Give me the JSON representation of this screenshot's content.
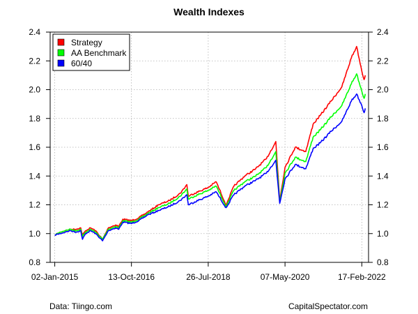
{
  "chart_data": {
    "type": "line",
    "title": "Wealth Indexes",
    "xlabel": "",
    "ylabel": "",
    "ylim": [
      0.8,
      2.4
    ],
    "xlim": [
      "2014-11-24",
      "2022-04-15"
    ],
    "y_ticks": [
      0.8,
      1.0,
      1.2,
      1.4,
      1.6,
      1.8,
      2.0,
      2.2,
      2.4
    ],
    "y_tick_labels": [
      "0.8",
      "1.0",
      "1.2",
      "1.4",
      "1.6",
      "1.8",
      "2.0",
      "2.2",
      "2.4"
    ],
    "x_ticks": [
      "2015-01-02",
      "2016-10-13",
      "2018-07-26",
      "2020-05-07",
      "2022-02-17"
    ],
    "x_tick_labels": [
      "02-Jan-2015",
      "13-Oct-2016",
      "26-Jul-2018",
      "07-May-2020",
      "17-Feb-2022"
    ],
    "y_axis_right": true,
    "grid": true,
    "legend_position": "top-left",
    "series": [
      {
        "name": "Strategy",
        "color": "#ff0000",
        "points": [
          [
            "2015-01-02",
            0.99
          ],
          [
            "2015-02-15",
            1.01
          ],
          [
            "2015-04-01",
            1.02
          ],
          [
            "2015-05-15",
            1.03
          ],
          [
            "2015-07-01",
            1.03
          ],
          [
            "2015-08-10",
            1.04
          ],
          [
            "2015-08-25",
            0.99
          ],
          [
            "2015-09-20",
            1.02
          ],
          [
            "2015-11-01",
            1.04
          ],
          [
            "2015-12-15",
            1.02
          ],
          [
            "2016-02-11",
            0.96
          ],
          [
            "2016-04-01",
            1.04
          ],
          [
            "2016-06-01",
            1.06
          ],
          [
            "2016-06-27",
            1.05
          ],
          [
            "2016-08-01",
            1.1
          ],
          [
            "2016-10-13",
            1.09
          ],
          [
            "2016-12-15",
            1.11
          ],
          [
            "2017-03-01",
            1.15
          ],
          [
            "2017-06-01",
            1.2
          ],
          [
            "2017-09-01",
            1.23
          ],
          [
            "2017-12-01",
            1.28
          ],
          [
            "2018-01-26",
            1.34
          ],
          [
            "2018-02-08",
            1.26
          ],
          [
            "2018-04-01",
            1.28
          ],
          [
            "2018-07-26",
            1.32
          ],
          [
            "2018-10-01",
            1.36
          ],
          [
            "2018-12-24",
            1.2
          ],
          [
            "2019-03-01",
            1.33
          ],
          [
            "2019-06-01",
            1.4
          ],
          [
            "2019-09-01",
            1.45
          ],
          [
            "2019-12-01",
            1.52
          ],
          [
            "2020-02-19",
            1.64
          ],
          [
            "2020-03-23",
            1.23
          ],
          [
            "2020-05-07",
            1.46
          ],
          [
            "2020-08-01",
            1.6
          ],
          [
            "2020-10-30",
            1.57
          ],
          [
            "2020-12-31",
            1.76
          ],
          [
            "2021-03-01",
            1.82
          ],
          [
            "2021-06-01",
            1.92
          ],
          [
            "2021-09-01",
            2.02
          ],
          [
            "2021-11-20",
            2.22
          ],
          [
            "2022-01-04",
            2.3
          ],
          [
            "2022-02-17",
            2.13
          ],
          [
            "2022-03-08",
            2.07
          ],
          [
            "2022-03-18",
            2.1
          ]
        ]
      },
      {
        "name": "AA Benchmark",
        "color": "#00ff00",
        "points": [
          [
            "2015-01-02",
            0.99
          ],
          [
            "2015-02-15",
            1.01
          ],
          [
            "2015-04-01",
            1.02
          ],
          [
            "2015-05-15",
            1.03
          ],
          [
            "2015-07-01",
            1.02
          ],
          [
            "2015-08-10",
            1.03
          ],
          [
            "2015-08-25",
            0.98
          ],
          [
            "2015-09-20",
            1.01
          ],
          [
            "2015-11-01",
            1.03
          ],
          [
            "2015-12-15",
            1.01
          ],
          [
            "2016-02-11",
            0.96
          ],
          [
            "2016-04-01",
            1.03
          ],
          [
            "2016-06-01",
            1.05
          ],
          [
            "2016-06-27",
            1.04
          ],
          [
            "2016-08-01",
            1.09
          ],
          [
            "2016-10-13",
            1.08
          ],
          [
            "2016-12-15",
            1.1
          ],
          [
            "2017-03-01",
            1.14
          ],
          [
            "2017-06-01",
            1.18
          ],
          [
            "2017-09-01",
            1.21
          ],
          [
            "2017-12-01",
            1.26
          ],
          [
            "2018-01-26",
            1.31
          ],
          [
            "2018-02-08",
            1.24
          ],
          [
            "2018-04-01",
            1.26
          ],
          [
            "2018-07-26",
            1.3
          ],
          [
            "2018-10-01",
            1.33
          ],
          [
            "2018-12-24",
            1.19
          ],
          [
            "2019-03-01",
            1.3
          ],
          [
            "2019-06-01",
            1.36
          ],
          [
            "2019-09-01",
            1.4
          ],
          [
            "2019-12-01",
            1.46
          ],
          [
            "2020-02-19",
            1.57
          ],
          [
            "2020-03-23",
            1.22
          ],
          [
            "2020-05-07",
            1.42
          ],
          [
            "2020-08-01",
            1.53
          ],
          [
            "2020-10-30",
            1.5
          ],
          [
            "2020-12-31",
            1.67
          ],
          [
            "2021-03-01",
            1.72
          ],
          [
            "2021-06-01",
            1.81
          ],
          [
            "2021-09-01",
            1.89
          ],
          [
            "2021-11-20",
            2.04
          ],
          [
            "2022-01-04",
            2.11
          ],
          [
            "2022-02-17",
            1.99
          ],
          [
            "2022-03-08",
            1.94
          ],
          [
            "2022-03-18",
            1.97
          ]
        ]
      },
      {
        "name": "60/40",
        "color": "#0000ff",
        "points": [
          [
            "2015-01-02",
            0.99
          ],
          [
            "2015-02-15",
            1.0
          ],
          [
            "2015-04-01",
            1.01
          ],
          [
            "2015-05-15",
            1.02
          ],
          [
            "2015-07-01",
            1.01
          ],
          [
            "2015-08-10",
            1.02
          ],
          [
            "2015-08-25",
            0.96
          ],
          [
            "2015-09-20",
            1.0
          ],
          [
            "2015-11-01",
            1.02
          ],
          [
            "2015-12-15",
            1.0
          ],
          [
            "2016-02-11",
            0.95
          ],
          [
            "2016-04-01",
            1.02
          ],
          [
            "2016-06-01",
            1.04
          ],
          [
            "2016-06-27",
            1.03
          ],
          [
            "2016-08-01",
            1.08
          ],
          [
            "2016-10-13",
            1.07
          ],
          [
            "2016-12-15",
            1.09
          ],
          [
            "2017-03-01",
            1.13
          ],
          [
            "2017-06-01",
            1.16
          ],
          [
            "2017-09-01",
            1.19
          ],
          [
            "2017-12-01",
            1.23
          ],
          [
            "2018-01-26",
            1.27
          ],
          [
            "2018-02-08",
            1.2
          ],
          [
            "2018-04-01",
            1.22
          ],
          [
            "2018-07-26",
            1.26
          ],
          [
            "2018-10-01",
            1.29
          ],
          [
            "2018-12-24",
            1.18
          ],
          [
            "2019-03-01",
            1.27
          ],
          [
            "2019-06-01",
            1.33
          ],
          [
            "2019-09-01",
            1.37
          ],
          [
            "2019-12-01",
            1.42
          ],
          [
            "2020-02-19",
            1.51
          ],
          [
            "2020-03-23",
            1.21
          ],
          [
            "2020-05-07",
            1.38
          ],
          [
            "2020-08-01",
            1.48
          ],
          [
            "2020-10-30",
            1.45
          ],
          [
            "2020-12-31",
            1.59
          ],
          [
            "2021-03-01",
            1.63
          ],
          [
            "2021-06-01",
            1.71
          ],
          [
            "2021-09-01",
            1.78
          ],
          [
            "2021-11-20",
            1.92
          ],
          [
            "2022-01-04",
            1.97
          ],
          [
            "2022-02-17",
            1.89
          ],
          [
            "2022-03-08",
            1.84
          ],
          [
            "2022-03-18",
            1.87
          ]
        ]
      }
    ]
  },
  "footer": {
    "left": "Data: Tiingo.com",
    "right": "CapitalSpectator.com"
  }
}
